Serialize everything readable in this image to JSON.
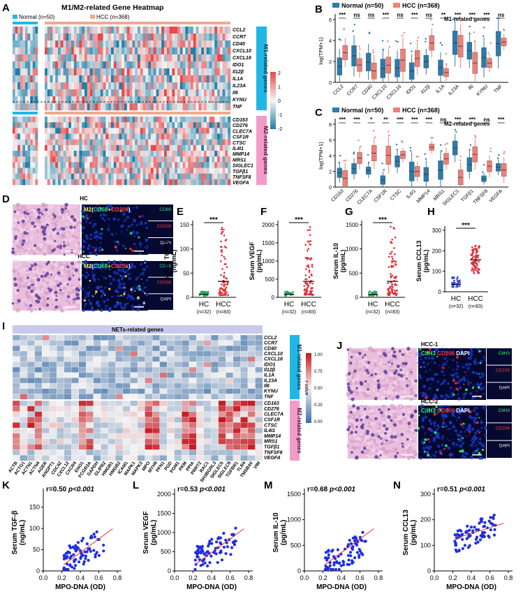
{
  "panel_letters": [
    "A",
    "B",
    "C",
    "D",
    "E",
    "F",
    "G",
    "H",
    "I",
    "J",
    "K",
    "L",
    "M",
    "N"
  ],
  "panelA": {
    "title": "M1/M2-related Gene Heatmap",
    "normal_label": "Normal (n=50)",
    "hcc_label": "HCC (n=368)",
    "m1_side": "M1-related genes",
    "m2_side": "M2-related genes",
    "m1_genes": [
      "CCL2",
      "CCR7",
      "CD40",
      "CXCL10",
      "CXCL16",
      "IDO1",
      "Il12β",
      "IL1A",
      "IL23A",
      "Il6",
      "KYNU",
      "TNF"
    ],
    "m2_genes": [
      "CD163",
      "CD276",
      "CLEC7A",
      "CSF1R",
      "CTSC",
      "IL4I1",
      "MMP14",
      "MRS1",
      "SIGLEC1",
      "TGFβ1",
      "TNFSF8",
      "VEGFA"
    ],
    "scale_ticks": [
      "2",
      "1",
      "0",
      "-1",
      "-2"
    ],
    "colors": {
      "high": "#e8484a",
      "mid": "#f4f4f4",
      "low": "#1f7fa8",
      "normal_bar": "#1fb8e6",
      "hcc_bar": "#f2a98e",
      "m1_bar": "#1fb8e6",
      "m2_bar": "#f29bc8"
    }
  },
  "panelB": {
    "legend_normal": "Normal (n=50)",
    "legend_hcc": "HCC (n=368)",
    "subtitle": "M1-related genes",
    "ylabel": "log(TPM+1)",
    "yticks": [
      "0",
      "2",
      "4",
      "6"
    ],
    "genes": [
      "CCL2",
      "CCR7",
      "CD40",
      "CXCL10",
      "CXCL16",
      "IDO1",
      "Il12β",
      "IL1A",
      "IL23A",
      "Il6",
      "KYNU",
      "TNF"
    ],
    "sig": [
      "***",
      "ns",
      "ns",
      "***",
      "ns",
      "***",
      "ns",
      "**",
      "***",
      "***",
      "***",
      "ns"
    ],
    "colors": {
      "normal": "#2b7bab",
      "hcc": "#f07f76"
    }
  },
  "panelC": {
    "legend_normal": "Normal (n=50)",
    "legend_hcc": "HCC (n=368)",
    "subtitle": "M2-related genes",
    "ylabel": "log(TPM+1)",
    "yticks": [
      "0",
      "2",
      "4",
      "6",
      "8"
    ],
    "genes": [
      "CD163",
      "CD276",
      "CLEC7A",
      "CSF1R",
      "CTSC",
      "IL4I1",
      "MMP14",
      "MRS1",
      "SIGLEC1",
      "TGFβ1",
      "TNFSF8",
      "VEGFA"
    ],
    "sig": [
      "***",
      "***",
      "*",
      "**",
      "***",
      "***",
      "***",
      "ns",
      "***",
      "***",
      "ns",
      "***"
    ]
  },
  "panelD": {
    "hc": "HC",
    "hcc": "HCC",
    "if_title_parts": [
      "M2",
      "(",
      "CD68",
      "+",
      "CD206",
      ")"
    ],
    "channels": [
      "CD68",
      "CD206",
      "DAPI"
    ]
  },
  "scatter_group": {
    "groups": [
      "HC",
      "HCC"
    ],
    "ns": [
      "(n=32)",
      "(n=83)"
    ],
    "sig": "***",
    "panels": [
      {
        "letter": "E",
        "ylabel": "Serum TGF-β (ng/mL)",
        "yticks": [
          "0",
          "50",
          "100",
          "150"
        ],
        "ymax": 160
      },
      {
        "letter": "F",
        "ylabel": "Serum VEGF (pg/mL)",
        "yticks": [
          "0",
          "500",
          "1000",
          "1500",
          "2000"
        ],
        "ymax": 2000
      },
      {
        "letter": "G",
        "ylabel": "Serum IL-10 (pg/mL)",
        "yticks": [
          "0",
          "500",
          "1000",
          "1500"
        ],
        "ymax": 1500
      },
      {
        "letter": "H",
        "ylabel": "Serum CCL13 (pg/mL)",
        "yticks": [
          "0",
          "100",
          "200",
          "300"
        ],
        "ymax": 300
      }
    ]
  },
  "panelI": {
    "header": "NETs-related genes",
    "rows_m1": [
      "CCL2",
      "CCR7",
      "CD40",
      "CXCL10",
      "CXCL16",
      "IDO1",
      "Il12β",
      "IL1A",
      "IL23A",
      "Il6",
      "KYNU",
      "TNF"
    ],
    "rows_m2": [
      "CD163",
      "CD276",
      "CLEC7A",
      "CSF1R",
      "CTSC",
      "IL4I1",
      "MMP14",
      "MRS1",
      "TGFβ1",
      "TNFSF8",
      "VEGFA"
    ],
    "cols": [
      "ACTB",
      "ACTG1",
      "ACTN1",
      "ACTN4",
      "AGER",
      "ANGPT1",
      "CDC42",
      "CXCL12",
      "CXCR4",
      "ENO1",
      "FCGR3A",
      "GAPDH",
      "GLIPR2",
      "HMGB1",
      "HMGB2",
      "ICAM1",
      "MAPK1",
      "MAPK3",
      "MPO",
      "MYH9",
      "PFN1",
      "PGD",
      "PGM1",
      "PKM",
      "PPIA",
      "PRRT2",
      "RAC1",
      "SH3BGRL3",
      "SIGLEC5",
      "SIGLEC9",
      "TGFBR1",
      "TLR4",
      "TMSB4X",
      "VIM"
    ],
    "scale_label": "r value",
    "scale_ticks": [
      "1.00",
      "0.75",
      "0.50",
      "0.25",
      "0.00"
    ],
    "m1_side": "M1-related genes",
    "m2_side": "M2-related genes"
  },
  "panelJ": {
    "hcc1": "HCC-1",
    "hcc2": "HCC-2",
    "if_title_parts": [
      "CitH3",
      "CD206",
      "DAPI"
    ],
    "channels": [
      "CitH3",
      "CD206",
      "DAPI"
    ]
  },
  "correlation": {
    "xlabel": "MPO-DNA (OD)",
    "xticks": [
      "0.0",
      "0.2",
      "0.4",
      "0.6",
      "0.8"
    ],
    "panels": [
      {
        "letter": "K",
        "r": "r=0.50",
        "p": "p<0.001",
        "ylabel": "Serum TGF-β (ng/mL)",
        "yticks": [
          "0",
          "50",
          "100",
          "150"
        ],
        "ymax": 180
      },
      {
        "letter": "L",
        "r": "r=0.53",
        "p": "p<0.001",
        "ylabel": "Serum VEGF (pg/mL)",
        "yticks": [
          "0",
          "500",
          "1000",
          "1500",
          "2000"
        ],
        "ymax": 2000
      },
      {
        "letter": "M",
        "r": "r=0.68",
        "p": "p<0.001",
        "ylabel": "Serum IL-10 (pg/mL)",
        "yticks": [
          "0",
          "500",
          "1000",
          "1500"
        ],
        "ymax": 1500
      },
      {
        "letter": "N",
        "r": "r=0.51",
        "p": "p<0.001",
        "ylabel": "Serum CCL13 (pg/mL)",
        "yticks": [
          "0",
          "100",
          "200",
          "300"
        ],
        "ymax": 300
      }
    ]
  }
}
